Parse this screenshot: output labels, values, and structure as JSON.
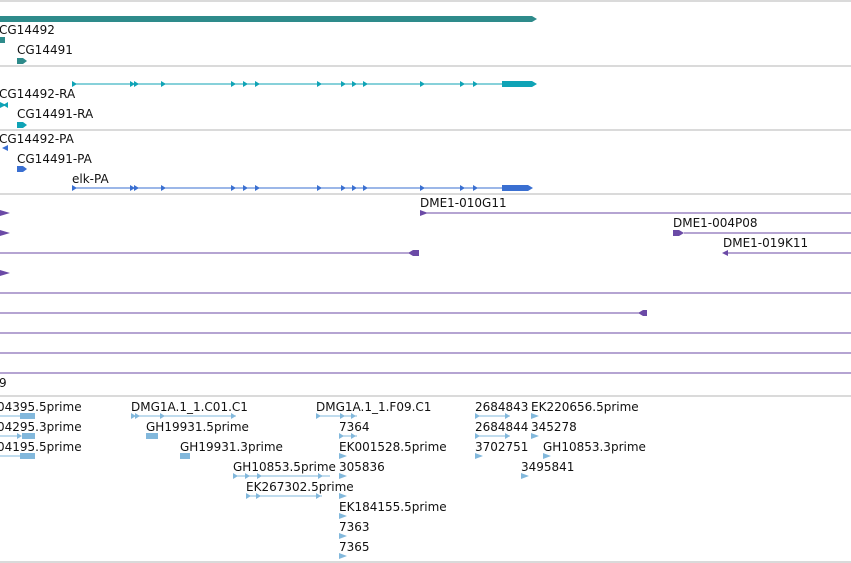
{
  "colors": {
    "gene": "#2e8b8b",
    "transcript": "#0fa3b6",
    "protein": "#3a6fd1",
    "clone": "#6b4aa6",
    "est": "#82b8dc",
    "separator": "#b5b5b5"
  },
  "gene_track": {
    "labels": [
      "CG14492",
      "CG14491"
    ]
  },
  "transcript_track": {
    "labels": [
      "CG14492-RA",
      "CG14491-RA"
    ]
  },
  "protein_track": {
    "labels": [
      "CG14492-PA",
      "CG14491-PA",
      "elk-PA"
    ]
  },
  "clone_track": {
    "labels": [
      "DME1-010G11",
      "DME1-004P08",
      "DME1-019K11",
      "9"
    ]
  },
  "est_track": {
    "labels": [
      "04395.5prime",
      "04295.3prime",
      "04195.5prime",
      "DMG1A.1_1.C01.C1",
      "GH19931.5prime",
      "GH19931.3prime",
      "GH10853.5prime",
      "EK267302.5prime",
      "DMG1A.1_1.F09.C1",
      "7364",
      "EK001528.5prime",
      "305836",
      "EK184155.5prime",
      "7363",
      "7365",
      "2684843",
      "EK220656.5prime",
      "2684844",
      "345278",
      "3702751",
      "GH10853.3prime",
      "3495841"
    ]
  }
}
